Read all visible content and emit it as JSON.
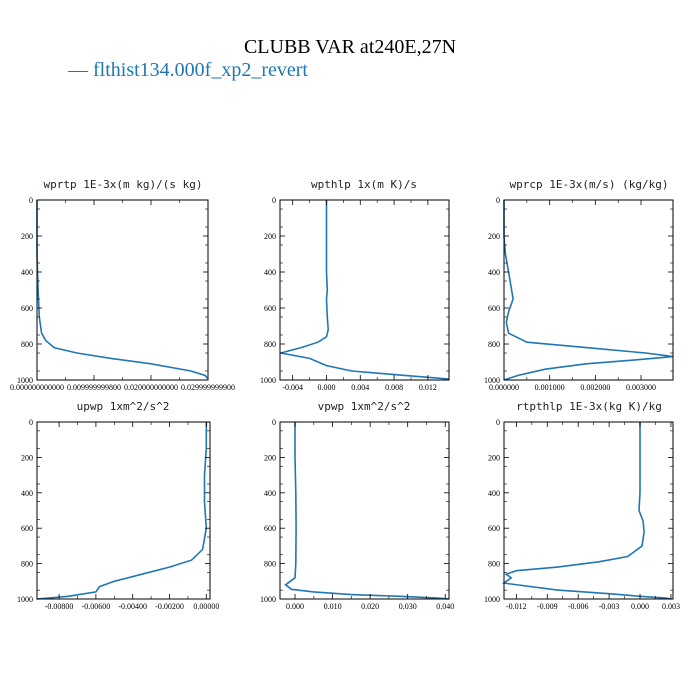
{
  "figure": {
    "title": "CLUBB VAR at240E,27N",
    "legend": "— flthist134.000f_xp2_revert",
    "line_color": "#1f77b4"
  },
  "chart_data": [
    {
      "type": "line",
      "title": "wprtp  1E-3x(m kg)/(s kg)",
      "xlim": [
        0.0,
        0.0299999999
      ],
      "ylim": [
        1000,
        0
      ],
      "xticks": [
        0.0,
        0.00999999998,
        0.02,
        0.0299999999
      ],
      "xtick_labels": [
        "0.000000000000",
        "0.009999999800",
        "0.020000000000",
        "0.029999999900"
      ],
      "yticks": [
        0,
        200,
        400,
        600,
        800,
        1000
      ],
      "series": [
        {
          "x": [
            0.0,
            0.0,
            0.0002,
            0.0004,
            0.0008,
            0.0015,
            0.003,
            0.007,
            0.013,
            0.02,
            0.027,
            0.0295,
            0.0299
          ],
          "y": [
            0,
            300,
            500,
            650,
            740,
            780,
            820,
            850,
            880,
            910,
            950,
            975,
            990
          ]
        }
      ]
    },
    {
      "type": "line",
      "title": "wpthlp  1x(m K)/s",
      "xlim": [
        -0.0055,
        0.0145
      ],
      "ylim": [
        1000,
        0
      ],
      "xticks": [
        -0.004,
        0.0,
        0.004,
        0.008,
        0.012
      ],
      "xtick_labels": [
        "-0.004",
        "0.000",
        "0.004",
        "0.008",
        "0.012"
      ],
      "yticks": [
        0,
        200,
        400,
        600,
        800,
        1000
      ],
      "series": [
        {
          "x": [
            0.0,
            0.0,
            0.0,
            0.0001,
            0.0,
            0.0001,
            0.0002,
            0.0,
            -0.001,
            -0.003,
            -0.0054,
            -0.002,
            0.0,
            0.003,
            0.008,
            0.012,
            0.0145
          ],
          "y": [
            0,
            200,
            400,
            500,
            550,
            650,
            720,
            760,
            790,
            820,
            850,
            880,
            920,
            950,
            970,
            985,
            995
          ]
        }
      ]
    },
    {
      "type": "line",
      "title": "wprcp  1E-3x(m/s) (kg/kg)",
      "xlim": [
        0.0,
        0.0037
      ],
      "ylim": [
        1000,
        0
      ],
      "xticks": [
        0.0,
        0.001,
        0.002,
        0.003
      ],
      "xtick_labels": [
        "0.000000",
        "0.001000",
        "0.002000",
        "0.003000"
      ],
      "yticks": [
        0,
        200,
        400,
        600,
        800,
        1000
      ],
      "series": [
        {
          "x": [
            0.0,
            0.0,
            3e-05,
            0.0001,
            0.0002,
            0.0001,
            5e-05,
            0.0001,
            0.0005,
            0.0018,
            0.0031,
            0.0037,
            0.0028,
            0.0018,
            0.0009,
            0.0003,
            0.0
          ],
          "y": [
            0,
            200,
            300,
            400,
            550,
            620,
            680,
            740,
            790,
            820,
            850,
            870,
            890,
            910,
            940,
            975,
            1000
          ]
        }
      ]
    },
    {
      "type": "line",
      "title": "upwp   1xm^2/s^2",
      "xlim": [
        -0.0092,
        0.0002
      ],
      "ylim": [
        1000,
        0
      ],
      "xticks": [
        -0.008,
        -0.006,
        -0.004,
        -0.002,
        0.0
      ],
      "xtick_labels": [
        "-0.00800",
        "-0.00600",
        "-0.00400",
        "-0.00200",
        "0.00000"
      ],
      "yticks": [
        0,
        200,
        400,
        600,
        800,
        1000
      ],
      "series": [
        {
          "x": [
            0.0,
            0.0,
            -0.0001,
            -0.0001,
            0.0,
            -0.0002,
            -0.0008,
            -0.002,
            -0.0035,
            -0.005,
            -0.0058,
            -0.006,
            -0.0075,
            -0.0092
          ],
          "y": [
            0,
            150,
            300,
            450,
            600,
            720,
            780,
            820,
            860,
            900,
            930,
            960,
            985,
            1000
          ]
        }
      ]
    },
    {
      "type": "line",
      "title": "vpwp   1xm^2/s^2",
      "xlim": [
        -0.004,
        0.041
      ],
      "ylim": [
        1000,
        0
      ],
      "xticks": [
        0.0,
        0.01,
        0.02,
        0.03,
        0.04
      ],
      "xtick_labels": [
        "0.000",
        "0.010",
        "0.020",
        "0.030",
        "0.040"
      ],
      "yticks": [
        0,
        200,
        400,
        600,
        800,
        1000
      ],
      "series": [
        {
          "x": [
            0.0,
            0.0,
            0.0002,
            0.0003,
            0.0002,
            0.0,
            -0.0025,
            -0.001,
            0.005,
            0.015,
            0.028,
            0.038,
            0.041
          ],
          "y": [
            0,
            200,
            400,
            600,
            800,
            880,
            920,
            945,
            960,
            975,
            985,
            995,
            1000
          ]
        }
      ]
    },
    {
      "type": "line",
      "title": "rtpthlp  1E-3x(kg K)/kg",
      "xlim": [
        -0.0132,
        0.0032
      ],
      "ylim": [
        1000,
        0
      ],
      "xticks": [
        -0.012,
        -0.009,
        -0.006,
        -0.003,
        0.0,
        0.003
      ],
      "xtick_labels": [
        "-0.012",
        "-0.009",
        "-0.006",
        "-0.003",
        "0.000",
        "0.003"
      ],
      "yticks": [
        0,
        200,
        400,
        600,
        800,
        1000
      ],
      "series": [
        {
          "x": [
            0.0,
            0.0,
            0.0,
            -0.0001,
            0.0003,
            0.0004,
            0.0002,
            -0.0012,
            -0.004,
            -0.008,
            -0.012,
            -0.013,
            -0.0125,
            -0.0132,
            -0.008,
            -0.003,
            0.0,
            0.0025,
            0.003
          ],
          "y": [
            0,
            200,
            400,
            500,
            560,
            620,
            700,
            760,
            790,
            820,
            840,
            860,
            880,
            910,
            950,
            970,
            985,
            995,
            1000
          ]
        }
      ]
    }
  ]
}
